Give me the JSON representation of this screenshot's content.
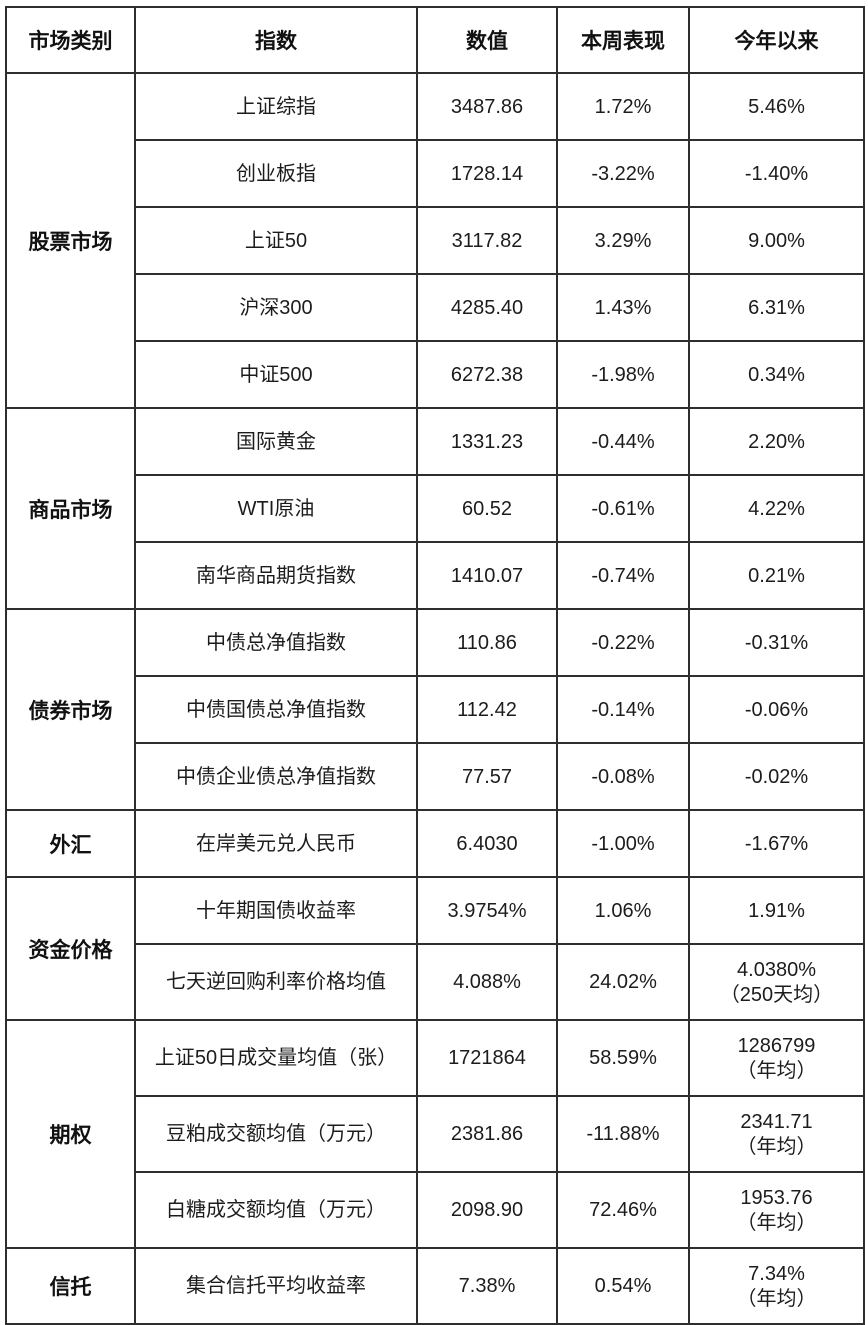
{
  "theme": {
    "background_color": "#ffffff",
    "border_color": "#2e2e2e",
    "header_text_color": "#111111",
    "body_text_color": "#1c1c1c"
  },
  "table": {
    "columns": [
      {
        "label": "市场类别"
      },
      {
        "label": "指数"
      },
      {
        "label": "数值"
      },
      {
        "label": "本周表现"
      },
      {
        "label": "今年以来"
      }
    ],
    "sections": [
      {
        "category": "股票市场",
        "rows": [
          {
            "index": "上证综指",
            "value": "3487.86",
            "week": "1.72%",
            "ytd": "5.46%",
            "ytd_note": ""
          },
          {
            "index": "创业板指",
            "value": "1728.14",
            "week": "-3.22%",
            "ytd": "-1.40%",
            "ytd_note": ""
          },
          {
            "index": "上证50",
            "value": "3117.82",
            "week": "3.29%",
            "ytd": "9.00%",
            "ytd_note": ""
          },
          {
            "index": "沪深300",
            "value": "4285.40",
            "week": "1.43%",
            "ytd": "6.31%",
            "ytd_note": ""
          },
          {
            "index": "中证500",
            "value": "6272.38",
            "week": "-1.98%",
            "ytd": "0.34%",
            "ytd_note": ""
          }
        ]
      },
      {
        "category": "商品市场",
        "rows": [
          {
            "index": "国际黄金",
            "value": "1331.23",
            "week": "-0.44%",
            "ytd": "2.20%",
            "ytd_note": ""
          },
          {
            "index": "WTI原油",
            "value": "60.52",
            "week": "-0.61%",
            "ytd": "4.22%",
            "ytd_note": ""
          },
          {
            "index": "南华商品期货指数",
            "value": "1410.07",
            "week": "-0.74%",
            "ytd": "0.21%",
            "ytd_note": ""
          }
        ]
      },
      {
        "category": "债券市场",
        "rows": [
          {
            "index": "中债总净值指数",
            "value": "110.86",
            "week": "-0.22%",
            "ytd": "-0.31%",
            "ytd_note": ""
          },
          {
            "index": "中债国债总净值指数",
            "value": "112.42",
            "week": "-0.14%",
            "ytd": "-0.06%",
            "ytd_note": ""
          },
          {
            "index": "中债企业债总净值指数",
            "value": "77.57",
            "week": "-0.08%",
            "ytd": "-0.02%",
            "ytd_note": ""
          }
        ]
      },
      {
        "category": "外汇",
        "rows": [
          {
            "index": "在岸美元兑人民币",
            "value": "6.4030",
            "week": "-1.00%",
            "ytd": "-1.67%",
            "ytd_note": ""
          }
        ]
      },
      {
        "category": "资金价格",
        "rows": [
          {
            "index": "十年期国债收益率",
            "value": "3.9754%",
            "week": "1.06%",
            "ytd": "1.91%",
            "ytd_note": ""
          },
          {
            "index": "七天逆回购利率价格均值",
            "value": "4.088%",
            "week": "24.02%",
            "ytd": "4.0380%",
            "ytd_note": "（250天均）"
          }
        ]
      },
      {
        "category": "期权",
        "rows": [
          {
            "index": "上证50日成交量均值（张）",
            "value": "1721864",
            "week": "58.59%",
            "ytd": "1286799",
            "ytd_note": "（年均）"
          },
          {
            "index": "豆粕成交额均值（万元）",
            "value": "2381.86",
            "week": "-11.88%",
            "ytd": "2341.71",
            "ytd_note": "（年均）"
          },
          {
            "index": "白糖成交额均值（万元）",
            "value": "2098.90",
            "week": "72.46%",
            "ytd": "1953.76",
            "ytd_note": "（年均）"
          }
        ]
      },
      {
        "category": "信托",
        "rows": [
          {
            "index": "集合信托平均收益率",
            "value": "7.38%",
            "week": "0.54%",
            "ytd": "7.34%",
            "ytd_note": "（年均）"
          }
        ]
      }
    ]
  },
  "chart_data": {
    "type": "table",
    "title": "",
    "columns": [
      "市场类别",
      "指数",
      "数值",
      "本周表现",
      "今年以来"
    ],
    "rows": [
      [
        "股票市场",
        "上证综指",
        "3487.86",
        "1.72%",
        "5.46%"
      ],
      [
        "股票市场",
        "创业板指",
        "1728.14",
        "-3.22%",
        "-1.40%"
      ],
      [
        "股票市场",
        "上证50",
        "3117.82",
        "3.29%",
        "9.00%"
      ],
      [
        "股票市场",
        "沪深300",
        "4285.40",
        "1.43%",
        "6.31%"
      ],
      [
        "股票市场",
        "中证500",
        "6272.38",
        "-1.98%",
        "0.34%"
      ],
      [
        "商品市场",
        "国际黄金",
        "1331.23",
        "-0.44%",
        "2.20%"
      ],
      [
        "商品市场",
        "WTI原油",
        "60.52",
        "-0.61%",
        "4.22%"
      ],
      [
        "商品市场",
        "南华商品期货指数",
        "1410.07",
        "-0.74%",
        "0.21%"
      ],
      [
        "债券市场",
        "中债总净值指数",
        "110.86",
        "-0.22%",
        "-0.31%"
      ],
      [
        "债券市场",
        "中债国债总净值指数",
        "112.42",
        "-0.14%",
        "-0.06%"
      ],
      [
        "债券市场",
        "中债企业债总净值指数",
        "77.57",
        "-0.08%",
        "-0.02%"
      ],
      [
        "外汇",
        "在岸美元兑人民币",
        "6.4030",
        "-1.00%",
        "-1.67%"
      ],
      [
        "资金价格",
        "十年期国债收益率",
        "3.9754%",
        "1.06%",
        "1.91%"
      ],
      [
        "资金价格",
        "七天逆回购利率价格均值",
        "4.088%",
        "24.02%",
        "4.0380%（250天均）"
      ],
      [
        "期权",
        "上证50日成交量均值（张）",
        "1721864",
        "58.59%",
        "1286799（年均）"
      ],
      [
        "期权",
        "豆粕成交额均值（万元）",
        "2381.86",
        "-11.88%",
        "2341.71（年均）"
      ],
      [
        "期权",
        "白糖成交额均值（万元）",
        "2098.90",
        "72.46%",
        "1953.76（年均）"
      ],
      [
        "信托",
        "集合信托平均收益率",
        "7.38%",
        "0.54%",
        "7.34%（年均）"
      ]
    ]
  }
}
